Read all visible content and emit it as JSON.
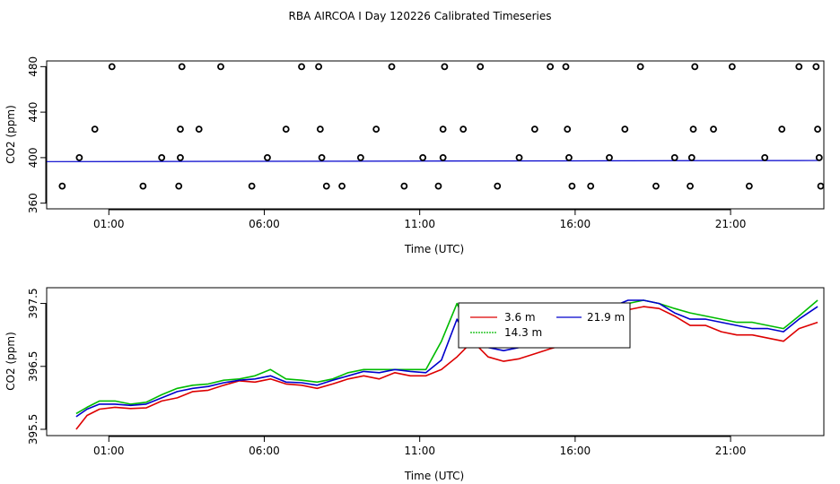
{
  "title": "RBA AIRCOA I  Day 120226  Calibrated Timeseries",
  "chart_data": [
    {
      "type": "scatter",
      "xlabel": "Time (UTC)",
      "ylabel": "CO2 (ppm)",
      "xlim": [
        -1.0,
        24.0
      ],
      "ylim": [
        355,
        485
      ],
      "x_ticks": [
        1,
        6,
        11,
        16,
        21
      ],
      "x_tick_labels": [
        "01:00",
        "06:00",
        "11:00",
        "16:00",
        "21:00"
      ],
      "y_ticks": [
        360,
        400,
        440,
        480
      ],
      "y_tick_labels": [
        "360",
        "400",
        "440",
        "480"
      ],
      "calibration_points": [
        {
          "x": 0.05,
          "y": 400
        },
        {
          "x": 0.55,
          "y": 425
        },
        {
          "x": 1.1,
          "y": 480
        },
        {
          "x": 2.7,
          "y": 400
        },
        {
          "x": 3.3,
          "y": 400
        },
        {
          "x": 3.3,
          "y": 425
        },
        {
          "x": 3.35,
          "y": 480
        },
        {
          "x": 3.9,
          "y": 425
        },
        {
          "x": 4.6,
          "y": 480
        },
        {
          "x": 6.1,
          "y": 400
        },
        {
          "x": 6.7,
          "y": 425
        },
        {
          "x": 7.2,
          "y": 480
        },
        {
          "x": 7.75,
          "y": 480
        },
        {
          "x": 7.8,
          "y": 425
        },
        {
          "x": 7.85,
          "y": 400
        },
        {
          "x": 8.0,
          "y": 375
        },
        {
          "x": 9.1,
          "y": 400
        },
        {
          "x": 9.6,
          "y": 425
        },
        {
          "x": 10.1,
          "y": 480
        },
        {
          "x": 11.1,
          "y": 400
        },
        {
          "x": 11.75,
          "y": 400
        },
        {
          "x": 11.75,
          "y": 425
        },
        {
          "x": 11.8,
          "y": 480
        },
        {
          "x": 12.4,
          "y": 425
        },
        {
          "x": 12.95,
          "y": 480
        },
        {
          "x": 14.2,
          "y": 400
        },
        {
          "x": 14.7,
          "y": 425
        },
        {
          "x": 15.2,
          "y": 480
        },
        {
          "x": 15.7,
          "y": 480
        },
        {
          "x": 15.75,
          "y": 425
        },
        {
          "x": 15.8,
          "y": 400
        },
        {
          "x": 15.9,
          "y": 375
        },
        {
          "x": 17.1,
          "y": 400
        },
        {
          "x": 17.6,
          "y": 425
        },
        {
          "x": 18.1,
          "y": 480
        },
        {
          "x": 19.2,
          "y": 400
        },
        {
          "x": 19.75,
          "y": 400
        },
        {
          "x": 19.8,
          "y": 425
        },
        {
          "x": 19.85,
          "y": 480
        },
        {
          "x": 20.45,
          "y": 425
        },
        {
          "x": 21.05,
          "y": 480
        },
        {
          "x": 22.1,
          "y": 400
        },
        {
          "x": 22.65,
          "y": 425
        },
        {
          "x": 23.2,
          "y": 480
        },
        {
          "x": 23.75,
          "y": 480
        },
        {
          "x": 23.8,
          "y": 425
        },
        {
          "x": 23.85,
          "y": 400
        },
        {
          "x": 23.9,
          "y": 375
        },
        {
          "x": -0.5,
          "y": 375
        },
        {
          "x": 2.1,
          "y": 375
        },
        {
          "x": 3.25,
          "y": 375
        },
        {
          "x": 5.6,
          "y": 375
        },
        {
          "x": 8.5,
          "y": 375
        },
        {
          "x": 10.5,
          "y": 375
        },
        {
          "x": 11.6,
          "y": 375
        },
        {
          "x": 13.5,
          "y": 375
        },
        {
          "x": 16.5,
          "y": 375
        },
        {
          "x": 18.6,
          "y": 375
        },
        {
          "x": 19.7,
          "y": 375
        },
        {
          "x": 21.6,
          "y": 375
        }
      ],
      "series_flat": {
        "x": [
          -1.0,
          23.9
        ],
        "y": [
          396.5,
          397.5
        ]
      }
    },
    {
      "type": "line",
      "xlabel": "Time (UTC)",
      "ylabel": "CO2 (ppm)",
      "xlim": [
        -1.0,
        24.0
      ],
      "ylim": [
        395.4,
        397.75
      ],
      "x_ticks": [
        1,
        6,
        11,
        16,
        21
      ],
      "x_tick_labels": [
        "01:00",
        "06:00",
        "11:00",
        "16:00",
        "21:00"
      ],
      "y_ticks": [
        395.5,
        396.5,
        397.5
      ],
      "y_tick_labels": [
        "395.5",
        "396.5",
        "397.5"
      ],
      "legend": {
        "placement": "top-center",
        "entries": [
          "3.6 m",
          "14.3 m",
          "21.9 m"
        ]
      },
      "series": [
        {
          "name": "3.6 m",
          "color": "#dd0000",
          "x": [
            -0.05,
            0.3,
            0.7,
            1.2,
            1.7,
            2.2,
            2.7,
            3.2,
            3.7,
            4.2,
            4.7,
            5.2,
            5.7,
            6.2,
            6.7,
            7.2,
            7.7,
            8.2,
            8.7,
            9.2,
            9.7,
            10.2,
            10.7,
            11.2,
            11.7,
            12.2,
            12.7,
            13.2,
            13.7,
            14.2,
            14.7,
            15.2,
            15.7,
            16.2,
            16.7,
            17.2,
            17.7,
            18.2,
            18.7,
            19.2,
            19.7,
            20.2,
            20.7,
            21.2,
            21.7,
            22.2,
            22.7,
            23.2,
            23.8
          ],
          "y": [
            395.5,
            395.72,
            395.82,
            395.85,
            395.83,
            395.84,
            395.95,
            396.0,
            396.1,
            396.12,
            396.2,
            396.27,
            396.25,
            396.3,
            396.22,
            396.2,
            396.15,
            396.22,
            396.3,
            396.35,
            396.3,
            396.4,
            396.35,
            396.35,
            396.45,
            396.65,
            396.9,
            396.65,
            396.58,
            396.62,
            396.7,
            396.78,
            396.85,
            397.1,
            397.25,
            397.35,
            397.4,
            397.45,
            397.42,
            397.3,
            397.15,
            397.15,
            397.05,
            397.0,
            397.0,
            396.95,
            396.9,
            397.1,
            397.2
          ]
        },
        {
          "name": "14.3 m",
          "color": "#00bb00",
          "x": [
            -0.05,
            0.3,
            0.7,
            1.2,
            1.7,
            2.2,
            2.7,
            3.2,
            3.7,
            4.2,
            4.7,
            5.2,
            5.7,
            6.2,
            6.7,
            7.2,
            7.7,
            8.2,
            8.7,
            9.2,
            9.7,
            10.2,
            10.7,
            11.2,
            11.7,
            12.2,
            12.7,
            13.2,
            13.7,
            14.2,
            14.7,
            15.2,
            15.7,
            16.2,
            16.7,
            17.2,
            17.7,
            18.2,
            18.7,
            19.2,
            19.7,
            20.2,
            20.7,
            21.2,
            21.7,
            22.2,
            22.7,
            23.2,
            23.8
          ],
          "y": [
            395.75,
            395.85,
            395.95,
            395.95,
            395.9,
            395.93,
            396.05,
            396.15,
            396.2,
            396.22,
            396.28,
            396.3,
            396.35,
            396.45,
            396.3,
            396.28,
            396.25,
            396.3,
            396.4,
            396.45,
            396.45,
            396.45,
            396.45,
            396.45,
            396.9,
            397.5,
            396.95,
            396.9,
            396.8,
            396.85,
            396.85,
            396.9,
            396.95,
            397.15,
            397.3,
            397.45,
            397.5,
            397.55,
            397.5,
            397.42,
            397.35,
            397.3,
            397.25,
            397.2,
            397.2,
            397.15,
            397.1,
            397.3,
            397.55
          ]
        },
        {
          "name": "21.9 m",
          "color": "#0000cc",
          "x": [
            -0.05,
            0.3,
            0.7,
            1.2,
            1.7,
            2.2,
            2.7,
            3.2,
            3.7,
            4.2,
            4.7,
            5.2,
            5.7,
            6.2,
            6.7,
            7.2,
            7.7,
            8.2,
            8.7,
            9.2,
            9.7,
            10.2,
            10.7,
            11.2,
            11.7,
            12.2,
            12.7,
            13.2,
            13.7,
            14.2,
            14.7,
            15.2,
            15.7,
            16.2,
            16.7,
            17.2,
            17.7,
            18.2,
            18.7,
            19.2,
            19.7,
            20.2,
            20.7,
            21.2,
            21.7,
            22.2,
            22.7,
            23.2,
            23.8
          ],
          "y": [
            395.7,
            395.82,
            395.9,
            395.9,
            395.88,
            395.9,
            396.0,
            396.1,
            396.15,
            396.18,
            396.24,
            396.28,
            396.3,
            396.35,
            396.25,
            396.24,
            396.2,
            396.28,
            396.35,
            396.42,
            396.4,
            396.45,
            396.42,
            396.4,
            396.6,
            397.25,
            396.8,
            396.8,
            396.75,
            396.8,
            396.8,
            396.95,
            397.1,
            397.25,
            397.35,
            397.45,
            397.55,
            397.55,
            397.5,
            397.35,
            397.25,
            397.25,
            397.2,
            397.15,
            397.1,
            397.1,
            397.05,
            397.25,
            397.45
          ]
        }
      ]
    }
  ]
}
